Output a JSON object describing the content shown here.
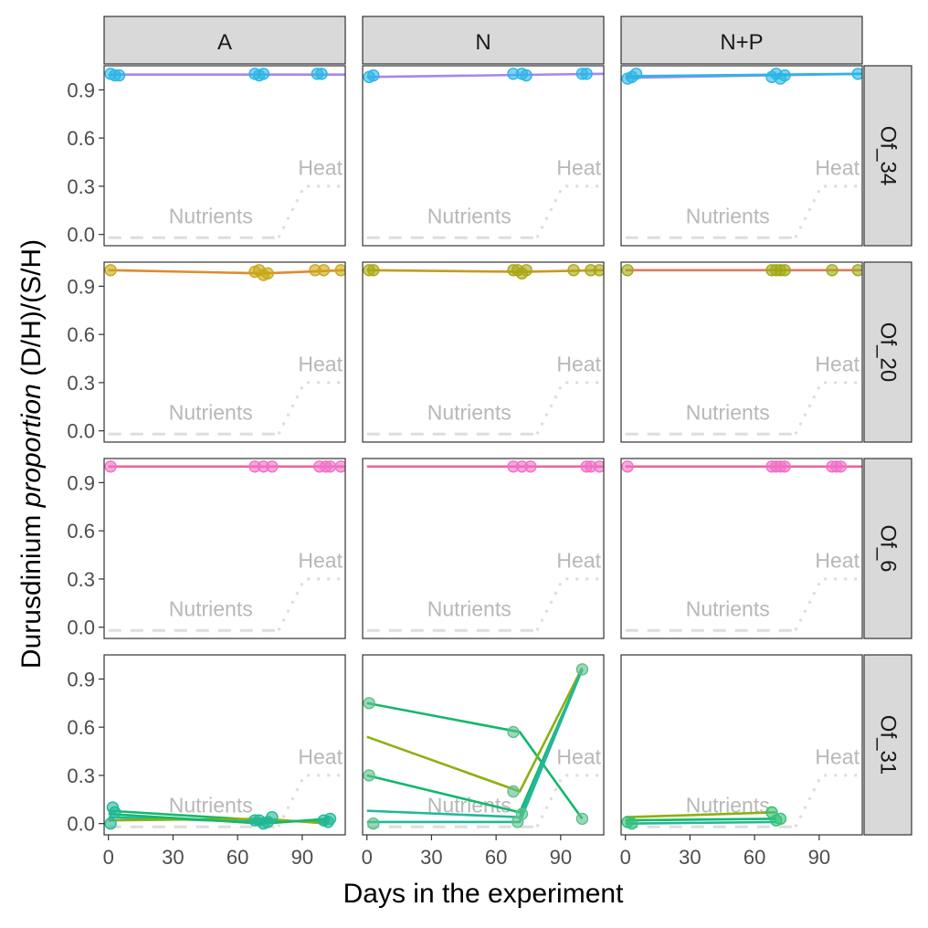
{
  "chart_data": {
    "type": "line",
    "xlabel": "Days in the experiment",
    "ylabel_main": "Durusdinium ",
    "ylabel_italic": "proportion",
    "ylabel_tail": " (D/H)/(S/H)",
    "x_ticks": [
      0,
      30,
      60,
      90
    ],
    "y_ticks": [
      0.0,
      0.3,
      0.6,
      0.9
    ],
    "xlim": [
      -2,
      110
    ],
    "ylim": [
      -0.07,
      1.05
    ],
    "columns": [
      "A",
      "N",
      "N+P"
    ],
    "rows": [
      "Of_34",
      "Of_20",
      "Of_6",
      "Of_31"
    ],
    "annotations": {
      "nutrients": "Nutrients",
      "heat": "Heat",
      "nutrients_line": {
        "x": [
          0,
          79
        ],
        "y": -0.02
      },
      "heat_line": {
        "x": [
          79,
          91,
          110
        ],
        "y": [
          -0.02,
          0.3,
          0.3
        ]
      }
    },
    "panels": [
      {
        "row": "Of_34",
        "col": "A",
        "color": "#29B6E6",
        "line_colors": [
          "#A786F0",
          "#29B6E6"
        ],
        "points": [
          [
            1,
            1
          ],
          [
            3,
            0.99
          ],
          [
            5,
            0.99
          ],
          [
            68,
            1
          ],
          [
            70,
            0.99
          ],
          [
            72,
            1
          ],
          [
            97,
            1
          ],
          [
            99,
            1
          ]
        ],
        "lines": [
          [
            [
              0,
              0.995
            ],
            [
              110,
              0.995
            ]
          ]
        ]
      },
      {
        "row": "Of_34",
        "col": "N",
        "color": "#29B6E6",
        "line_colors": [
          "#A786F0",
          "#29B6E6"
        ],
        "points": [
          [
            1,
            0.98
          ],
          [
            3,
            0.99
          ],
          [
            68,
            1
          ],
          [
            72,
            1
          ],
          [
            74,
            0.99
          ],
          [
            100,
            1
          ],
          [
            102,
            1
          ]
        ],
        "lines": [
          [
            [
              0,
              0.98
            ],
            [
              110,
              1.0
            ]
          ]
        ]
      },
      {
        "row": "Of_34",
        "col": "N+P",
        "color": "#29B6E6",
        "line_colors": [
          "#A786F0",
          "#29B6E6"
        ],
        "points": [
          [
            1,
            0.97
          ],
          [
            3,
            0.98
          ],
          [
            5,
            1
          ],
          [
            68,
            0.98
          ],
          [
            70,
            1
          ],
          [
            72,
            0.97
          ],
          [
            74,
            0.99
          ],
          [
            108,
            1
          ]
        ],
        "lines": [
          [
            [
              0,
              0.975
            ],
            [
              110,
              1.0
            ]
          ],
          [
            [
              0,
              0.985
            ],
            [
              110,
              1.0
            ]
          ]
        ]
      },
      {
        "row": "Of_20",
        "col": "A",
        "color": "#C8A818",
        "line_colors": [
          "#E08A2E",
          "#8DB010"
        ],
        "points": [
          [
            1,
            1
          ],
          [
            68,
            0.99
          ],
          [
            70,
            1
          ],
          [
            72,
            0.97
          ],
          [
            74,
            0.98
          ],
          [
            96,
            1
          ],
          [
            100,
            1
          ],
          [
            108,
            1
          ]
        ],
        "lines": [
          [
            [
              0,
              1.0
            ],
            [
              72,
              0.98
            ],
            [
              110,
              1.0
            ]
          ]
        ]
      },
      {
        "row": "Of_20",
        "col": "N",
        "color": "#A9A815",
        "line_colors": [
          "#C89A20",
          "#8DB010"
        ],
        "points": [
          [
            1,
            1
          ],
          [
            3,
            1
          ],
          [
            68,
            1
          ],
          [
            70,
            1
          ],
          [
            72,
            0.98
          ],
          [
            74,
            1
          ],
          [
            96,
            1
          ],
          [
            104,
            1
          ],
          [
            108,
            1
          ]
        ],
        "lines": [
          [
            [
              0,
              1.0
            ],
            [
              72,
              0.99
            ],
            [
              110,
              1.0
            ]
          ]
        ]
      },
      {
        "row": "Of_20",
        "col": "N+P",
        "color": "#9EAA15",
        "line_colors": [
          "#E07A5F",
          "#8DB010"
        ],
        "points": [
          [
            1,
            1
          ],
          [
            68,
            1
          ],
          [
            70,
            1
          ],
          [
            72,
            1
          ],
          [
            74,
            1
          ],
          [
            96,
            1
          ],
          [
            108,
            1
          ]
        ],
        "lines": [
          [
            [
              0,
              1.0
            ],
            [
              110,
              1.0
            ]
          ]
        ]
      },
      {
        "row": "Of_6",
        "col": "A",
        "color": "#F072C8",
        "line_colors": [
          "#F06292"
        ],
        "points": [
          [
            1,
            1
          ],
          [
            68,
            1
          ],
          [
            72,
            1
          ],
          [
            76,
            1
          ],
          [
            98,
            1
          ],
          [
            101,
            1
          ],
          [
            103,
            1
          ],
          [
            108,
            1
          ]
        ],
        "lines": [
          [
            [
              0,
              1.0
            ],
            [
              110,
              1.0
            ]
          ]
        ]
      },
      {
        "row": "Of_6",
        "col": "N",
        "color": "#F072C8",
        "line_colors": [
          "#F06292"
        ],
        "points": [
          [
            68,
            1
          ],
          [
            72,
            1
          ],
          [
            76,
            1
          ],
          [
            102,
            1
          ],
          [
            104,
            1
          ],
          [
            108,
            1
          ]
        ],
        "lines": [
          [
            [
              0,
              1.0
            ],
            [
              110,
              1.0
            ]
          ]
        ]
      },
      {
        "row": "Of_6",
        "col": "N+P",
        "color": "#F072C8",
        "line_colors": [
          "#F06292"
        ],
        "points": [
          [
            1,
            1
          ],
          [
            68,
            1
          ],
          [
            70,
            1
          ],
          [
            72,
            1
          ],
          [
            74,
            1
          ],
          [
            96,
            1
          ],
          [
            98,
            1
          ],
          [
            100,
            1
          ]
        ],
        "lines": [
          [
            [
              0,
              1.0
            ],
            [
              110,
              1.0
            ]
          ]
        ]
      },
      {
        "row": "Of_31",
        "col": "A",
        "color": "#22B89A",
        "line_colors": [
          "#14B86C",
          "#22B89A",
          "#8DB010"
        ],
        "points": [
          [
            1,
            0.0
          ],
          [
            2,
            0.1
          ],
          [
            3,
            0.07
          ],
          [
            68,
            0.02
          ],
          [
            70,
            0.02
          ],
          [
            72,
            0.0
          ],
          [
            74,
            0.01
          ],
          [
            76,
            0.04
          ],
          [
            100,
            0.02
          ],
          [
            102,
            0.01
          ],
          [
            103,
            0.03
          ]
        ],
        "lines": [
          [
            [
              0,
              0.08
            ],
            [
              72,
              0.02
            ],
            [
              102,
              0.01
            ]
          ],
          [
            [
              0,
              0.04
            ],
            [
              72,
              0.01
            ],
            [
              102,
              0.02
            ]
          ],
          [
            [
              0,
              0.02
            ],
            [
              72,
              0.03
            ],
            [
              102,
              0.0
            ]
          ],
          [
            [
              0,
              0.06
            ],
            [
              72,
              0.0
            ],
            [
              102,
              0.03
            ]
          ]
        ]
      },
      {
        "row": "Of_31",
        "col": "N",
        "color": "#5CC08A",
        "line_colors": [
          "#14B86C",
          "#8DB010",
          "#22B89A"
        ],
        "points": [
          [
            1,
            0.75
          ],
          [
            1,
            0.3
          ],
          [
            3,
            0.0
          ],
          [
            68,
            0.57
          ],
          [
            68,
            0.2
          ],
          [
            72,
            0.06
          ],
          [
            70,
            0.01
          ],
          [
            100,
            0.96
          ],
          [
            100,
            0.03
          ]
        ],
        "lines": [
          {
            "color": "#14B86C",
            "pts": [
              [
                0,
                0.75
              ],
              [
                71,
                0.57
              ],
              [
                100,
                0.03
              ]
            ]
          },
          {
            "color": "#8DB010",
            "pts": [
              [
                0,
                0.54
              ],
              [
                71,
                0.2
              ],
              [
                100,
                0.97
              ]
            ]
          },
          {
            "color": "#14B86C",
            "pts": [
              [
                0,
                0.3
              ],
              [
                71,
                0.07
              ],
              [
                100,
                0.96
              ]
            ]
          },
          {
            "color": "#22B89A",
            "pts": [
              [
                0,
                0.08
              ],
              [
                71,
                0.04
              ],
              [
                100,
                0.96
              ]
            ]
          },
          {
            "color": "#22B89A",
            "pts": [
              [
                0,
                0.01
              ],
              [
                71,
                0.01
              ],
              [
                100,
                0.96
              ]
            ]
          }
        ]
      },
      {
        "row": "Of_31",
        "col": "N+P",
        "color": "#35C079",
        "line_colors": [
          "#14B86C",
          "#8DB010",
          "#22B89A"
        ],
        "points": [
          [
            1,
            0.01
          ],
          [
            3,
            0.0
          ],
          [
            68,
            0.07
          ],
          [
            70,
            0.02
          ],
          [
            72,
            0.03
          ]
        ],
        "lines": [
          {
            "color": "#8DB010",
            "pts": [
              [
                0,
                0.04
              ],
              [
                70,
                0.07
              ]
            ]
          },
          {
            "color": "#14B86C",
            "pts": [
              [
                0,
                0.02
              ],
              [
                70,
                0.03
              ]
            ]
          },
          {
            "color": "#22B89A",
            "pts": [
              [
                0,
                0.0
              ],
              [
                70,
                0.01
              ]
            ]
          }
        ]
      }
    ]
  }
}
